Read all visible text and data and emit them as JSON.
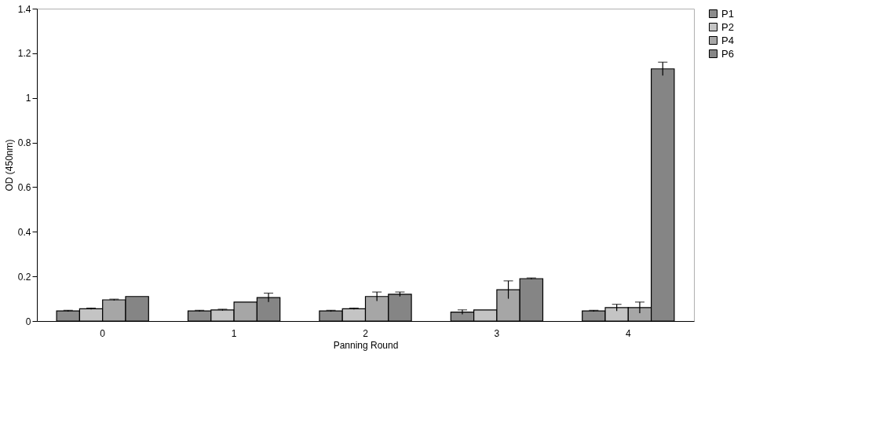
{
  "chart_data": {
    "type": "bar",
    "xlabel": "Panning Round",
    "ylabel": "OD (450nm)",
    "categories": [
      "0",
      "1",
      "2",
      "3",
      "4"
    ],
    "series": [
      {
        "name": "P1",
        "color": "#8c8c8c",
        "values": [
          0.045,
          0.045,
          0.045,
          0.04,
          0.045
        ],
        "errors": [
          0.003,
          0.003,
          0.003,
          0.01,
          0.003
        ]
      },
      {
        "name": "P2",
        "color": "#c4c4c4",
        "values": [
          0.055,
          0.05,
          0.055,
          0.05,
          0.06
        ],
        "errors": [
          0.003,
          0.003,
          0.003,
          null,
          0.015
        ]
      },
      {
        "name": "P4",
        "color": "#a6a6a6",
        "values": [
          0.095,
          0.085,
          0.11,
          0.14,
          0.06
        ],
        "errors": [
          0.003,
          null,
          0.02,
          0.04,
          0.025
        ]
      },
      {
        "name": "P6",
        "color": "#858585",
        "values": [
          0.11,
          0.105,
          0.12,
          0.19,
          1.13
        ],
        "errors": [
          null,
          0.02,
          0.01,
          0.003,
          0.03
        ]
      }
    ],
    "ylim": [
      0,
      1.4
    ],
    "yticks": [
      0,
      0.2,
      0.4,
      0.6,
      0.8,
      1,
      1.2,
      1.4
    ],
    "grid": false,
    "legend": "right"
  }
}
